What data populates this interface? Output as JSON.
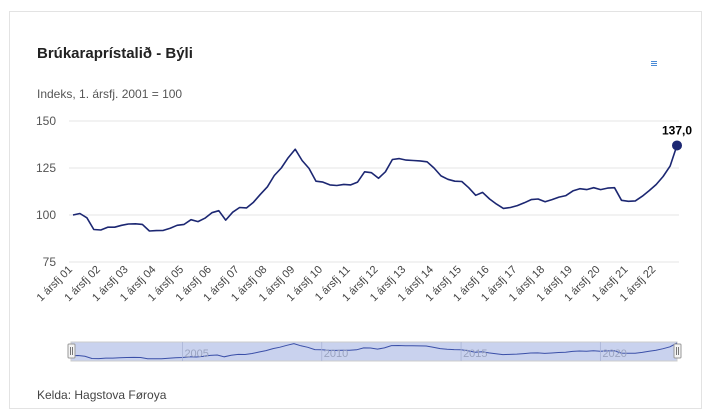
{
  "header": {
    "title": "Brúkaraprístalið - Býli",
    "subtitle": "Indeks, 1. ársfj. 2001 = 100",
    "menu_icon": "hamburger-menu-icon"
  },
  "footer": {
    "source": "Kelda: Hagstova Føroya"
  },
  "navigator": {
    "labels": [
      "2005",
      "2010",
      "2015",
      "2020"
    ]
  },
  "colors": {
    "line": "#1c2772",
    "navigator_fill": "#c9d2ee",
    "navigator_line": "#3a4fa8",
    "grid": "#e6e6e6"
  },
  "chart_data": {
    "type": "line",
    "title": "Brúkaraprístalið - Býli",
    "subtitle": "Indeks, 1. ársfj. 2001 = 100",
    "ylim": [
      75,
      150
    ],
    "y_ticks": [
      75,
      100,
      125,
      150
    ],
    "x_tick_labels": [
      "1 ársfj 01",
      "1 ársfj 02",
      "1 ársfj 03",
      "1 ársfj 04",
      "1 ársfj 05",
      "1 ársfj 06",
      "1 ársfj 07",
      "1 ársfj 08",
      "1 ársfj 09",
      "1 ársfj 10",
      "1 ársfj 11",
      "1 ársfj 12",
      "1 ársfj 13",
      "1 ársfj 14",
      "1 ársfj 15",
      "1 ársfj 16",
      "1 ársfj 17",
      "1 ársfj 18",
      "1 ársfj 19",
      "1 ársfj 20",
      "1 ársfj 21",
      "1 ársfj 22"
    ],
    "values": [
      100,
      100.8,
      98.5,
      92.3,
      92,
      93.5,
      93.5,
      94.5,
      95.2,
      95.3,
      95,
      91.5,
      91.7,
      91.8,
      93,
      94.5,
      95,
      97.5,
      96.5,
      98.3,
      101.2,
      102.3,
      97.3,
      101.5,
      104,
      103.8,
      106.8,
      111,
      115,
      121,
      125,
      130.5,
      135,
      129,
      124.8,
      118,
      117.5,
      116,
      115.7,
      116.3,
      116,
      117.5,
      123,
      122.5,
      119.5,
      123,
      129.5,
      130,
      129.2,
      129,
      128.8,
      128.3,
      125,
      120.8,
      119,
      118,
      117.8,
      114.5,
      110.5,
      112,
      108.5,
      105.8,
      103.5,
      104,
      105,
      106.5,
      108.2,
      108.5,
      107,
      108.2,
      109.5,
      110.3,
      112.8,
      114,
      113.5,
      114.5,
      113.5,
      114.3,
      114.5,
      107.8,
      107.3,
      107.5,
      110,
      113,
      116.2,
      120.5,
      126,
      137
    ],
    "last_point_label": "137,0",
    "grid": true,
    "legend": "none"
  }
}
